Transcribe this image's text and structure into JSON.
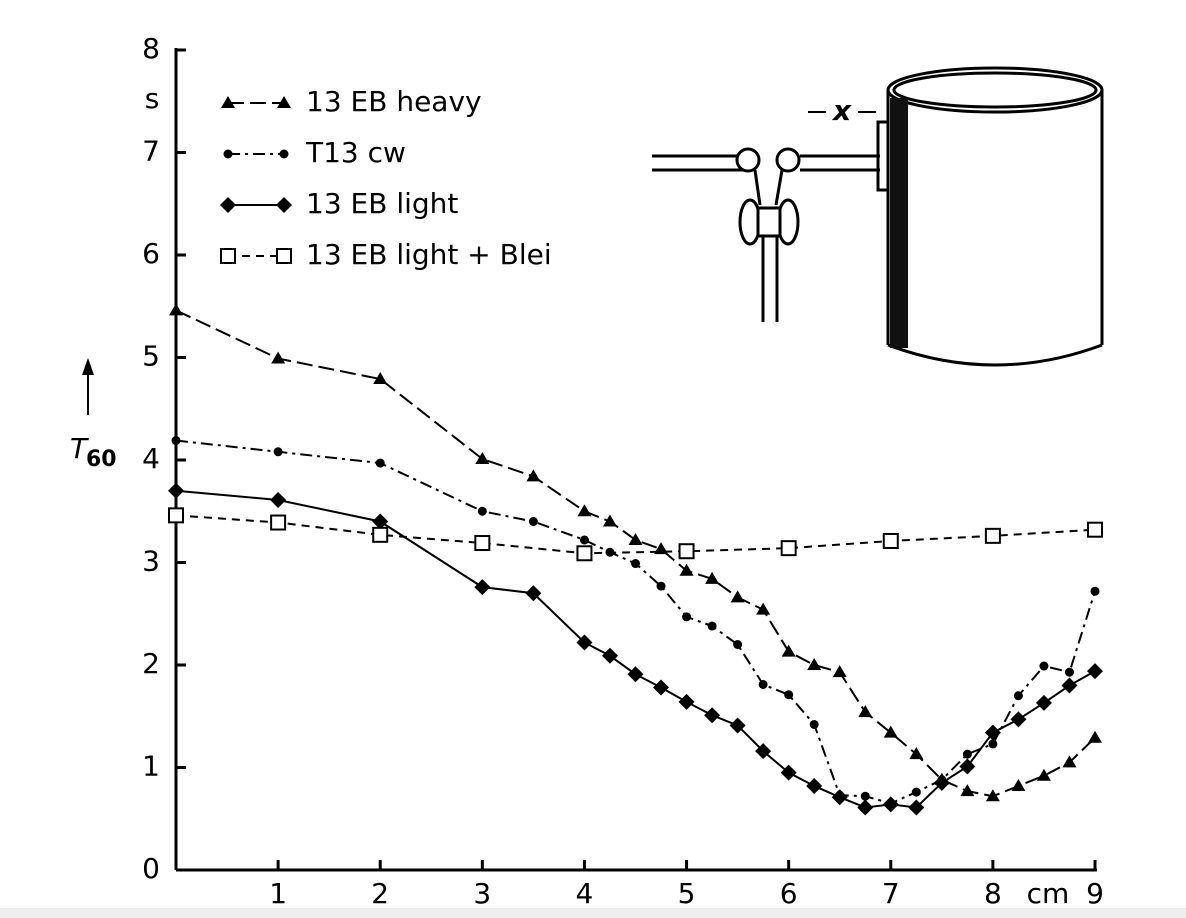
{
  "chart_data": {
    "type": "line",
    "y_label": "T",
    "y_label_sub": "60",
    "y_unit": "s",
    "x_unit": "cm",
    "diagram_label": "x",
    "xlim": [
      0,
      9
    ],
    "ylim": [
      0,
      8
    ],
    "xticks": [
      1,
      2,
      3,
      4,
      5,
      6,
      7,
      8,
      9
    ],
    "yticks": [
      0,
      1,
      2,
      3,
      4,
      5,
      6,
      7,
      8
    ],
    "series": [
      {
        "name": "13 EB heavy",
        "color": "#000000",
        "marker": "triangle",
        "dash": "long-dash",
        "x": [
          0,
          1,
          2,
          3,
          3.5,
          4,
          4.25,
          4.5,
          4.75,
          5,
          5.25,
          5.5,
          5.75,
          6,
          6.25,
          6.5,
          6.75,
          7,
          7.25,
          7.5,
          7.75,
          8,
          8.25,
          8.5,
          8.75,
          9
        ],
        "values": [
          5.46,
          4.99,
          4.79,
          4.01,
          3.84,
          3.5,
          3.4,
          3.22,
          3.13,
          2.92,
          2.84,
          2.66,
          2.54,
          2.13,
          2.0,
          1.93,
          1.54,
          1.34,
          1.13,
          0.88,
          0.77,
          0.72,
          0.82,
          0.92,
          1.05,
          1.29
        ]
      },
      {
        "name": "T13 cw",
        "color": "#000000",
        "marker": "circle",
        "dash": "dash-dot",
        "x": [
          0,
          1,
          2,
          3,
          3.5,
          4,
          4.25,
          4.5,
          4.75,
          5,
          5.25,
          5.5,
          5.75,
          6,
          6.25,
          6.5,
          6.75,
          7,
          7.25,
          7.5,
          7.75,
          8,
          8.25,
          8.5,
          8.75,
          9
        ],
        "values": [
          4.19,
          4.08,
          3.97,
          3.5,
          3.4,
          3.22,
          3.1,
          2.99,
          2.77,
          2.47,
          2.38,
          2.2,
          1.81,
          1.71,
          1.42,
          0.73,
          0.72,
          0.65,
          0.76,
          0.88,
          1.13,
          1.23,
          1.7,
          1.99,
          1.93,
          2.72
        ]
      },
      {
        "name": "13 EB light",
        "color": "#000000",
        "marker": "diamond",
        "dash": "solid",
        "x": [
          0,
          1,
          2,
          3,
          3.5,
          4,
          4.25,
          4.5,
          4.75,
          5,
          5.25,
          5.5,
          5.75,
          6,
          6.25,
          6.5,
          6.75,
          7,
          7.25,
          7.5,
          7.75,
          8,
          8.25,
          8.5,
          8.75,
          9
        ],
        "values": [
          3.7,
          3.61,
          3.4,
          2.76,
          2.7,
          2.22,
          2.09,
          1.91,
          1.78,
          1.64,
          1.51,
          1.41,
          1.16,
          0.95,
          0.82,
          0.71,
          0.61,
          0.64,
          0.61,
          0.85,
          1.01,
          1.34,
          1.47,
          1.63,
          1.8,
          1.94
        ]
      },
      {
        "name": "13 EB light + Blei",
        "color": "#000000",
        "marker": "square",
        "dash": "dash",
        "x": [
          0,
          1,
          2,
          3,
          4,
          5,
          6,
          7,
          8,
          9
        ],
        "values": [
          3.46,
          3.39,
          3.27,
          3.19,
          3.09,
          3.11,
          3.14,
          3.21,
          3.26,
          3.32
        ]
      }
    ]
  }
}
